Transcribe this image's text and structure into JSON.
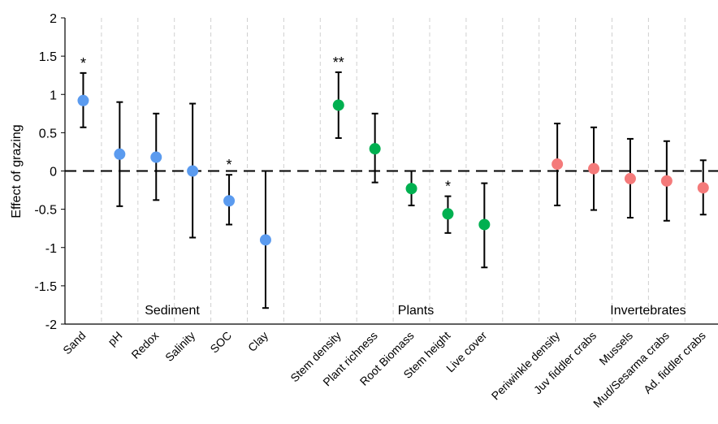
{
  "chart_data": {
    "type": "scatter",
    "ylabel": "Effect of grazing",
    "ylim": [
      -2,
      2
    ],
    "yticks": [
      {
        "value": 2,
        "label": "2"
      },
      {
        "value": 1.5,
        "label": "1.5"
      },
      {
        "value": 1,
        "label": "1"
      },
      {
        "value": 0.5,
        "label": "0.5"
      },
      {
        "value": 0,
        "label": "0"
      },
      {
        "value": -0.5,
        "label": "-0.5"
      },
      {
        "value": -1,
        "label": "-1"
      },
      {
        "value": -1.5,
        "label": "-1.5"
      },
      {
        "value": -2,
        "label": "-2"
      }
    ],
    "reference_line": 0,
    "grid": "vertical dashed separators between categories",
    "groups": [
      {
        "name": "Sediment",
        "color": "#5b9bef"
      },
      {
        "name": "Plants",
        "color": "#00b050"
      },
      {
        "name": "Invertebrates",
        "color": "#f47a7a"
      }
    ],
    "points": [
      {
        "category": "Sand",
        "group": 0,
        "value": 0.92,
        "err_low": 0.57,
        "err_high": 1.28,
        "sig": "*"
      },
      {
        "category": "pH",
        "group": 0,
        "value": 0.22,
        "err_low": -0.46,
        "err_high": 0.9,
        "sig": ""
      },
      {
        "category": "Redox",
        "group": 0,
        "value": 0.18,
        "err_low": -0.38,
        "err_high": 0.75,
        "sig": ""
      },
      {
        "category": "Salinity",
        "group": 0,
        "value": 0.0,
        "err_low": -0.87,
        "err_high": 0.88,
        "sig": ""
      },
      {
        "category": "SOC",
        "group": 0,
        "value": -0.39,
        "err_low": -0.7,
        "err_high": -0.05,
        "sig": "*"
      },
      {
        "category": "Clay",
        "group": 0,
        "value": -0.9,
        "err_low": -1.79,
        "err_high": 0.0,
        "sig": ""
      },
      {
        "category": "Stem density",
        "group": 1,
        "value": 0.86,
        "err_low": 0.43,
        "err_high": 1.29,
        "sig": "**"
      },
      {
        "category": "Plant richness",
        "group": 1,
        "value": 0.29,
        "err_low": -0.15,
        "err_high": 0.75,
        "sig": ""
      },
      {
        "category": "Root Biomass",
        "group": 1,
        "value": -0.23,
        "err_low": -0.45,
        "err_high": 0.0,
        "sig": ""
      },
      {
        "category": "Stem height",
        "group": 1,
        "value": -0.56,
        "err_low": -0.81,
        "err_high": -0.33,
        "sig": "*"
      },
      {
        "category": "Live cover",
        "group": 1,
        "value": -0.7,
        "err_low": -1.26,
        "err_high": -0.16,
        "sig": ""
      },
      {
        "category": "Periwinkle density",
        "group": 2,
        "value": 0.09,
        "err_low": -0.45,
        "err_high": 0.62,
        "sig": ""
      },
      {
        "category": "Juv fiddler crabs",
        "group": 2,
        "value": 0.03,
        "err_low": -0.51,
        "err_high": 0.57,
        "sig": ""
      },
      {
        "category": "Mussels",
        "group": 2,
        "value": -0.1,
        "err_low": -0.61,
        "err_high": 0.42,
        "sig": ""
      },
      {
        "category": "Mud/Sesarma crabs",
        "group": 2,
        "value": -0.13,
        "err_low": -0.65,
        "err_high": 0.39,
        "sig": ""
      },
      {
        "category": "Ad. fiddler crabs",
        "group": 2,
        "value": -0.22,
        "err_low": -0.57,
        "err_high": 0.14,
        "sig": ""
      }
    ]
  }
}
